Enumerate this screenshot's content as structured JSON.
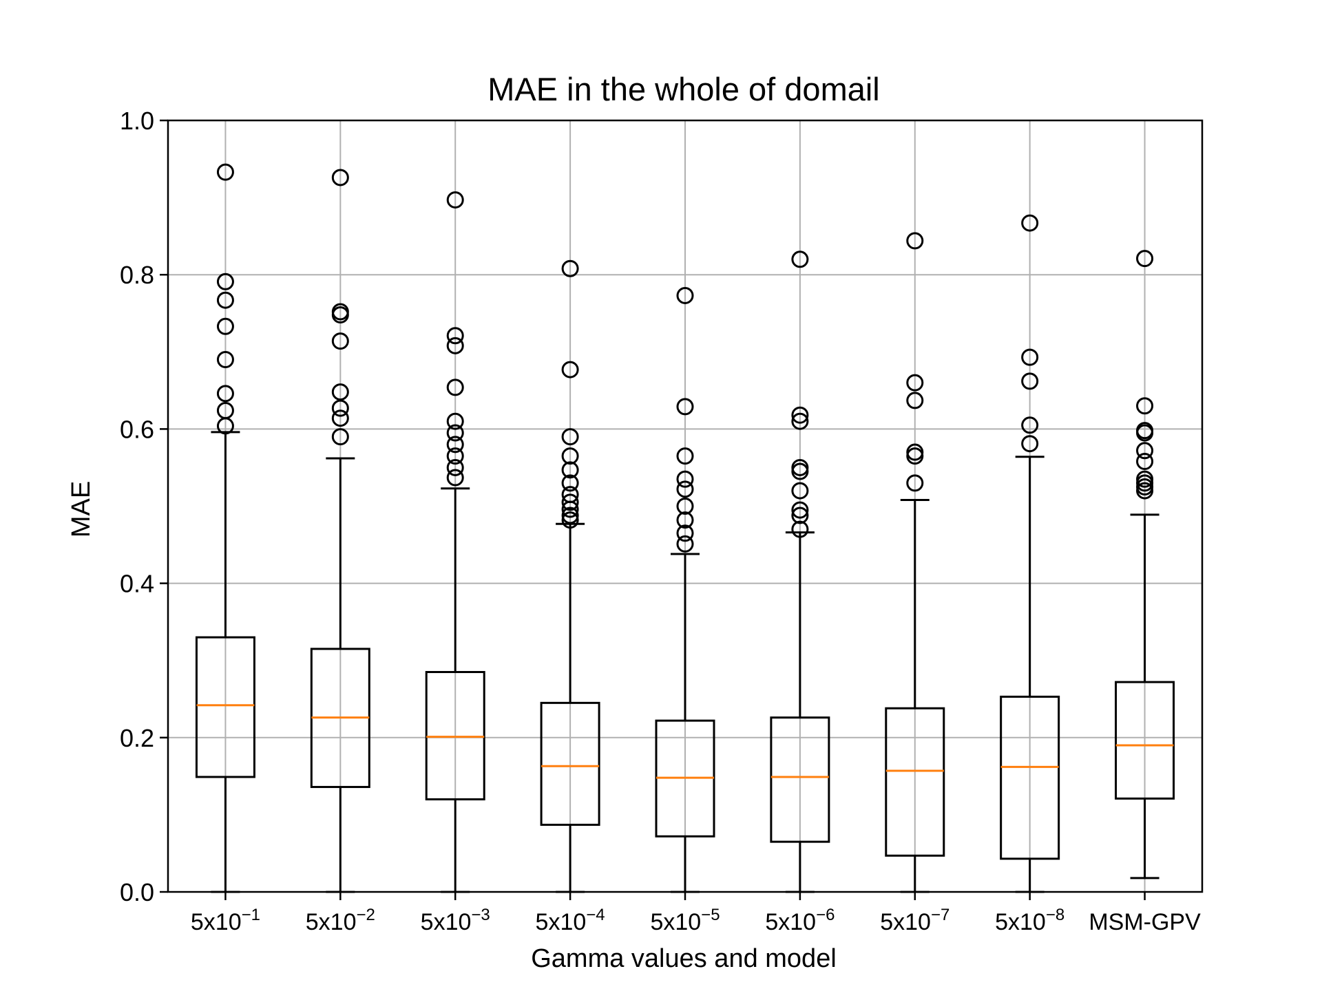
{
  "chart_data": {
    "type": "boxplot",
    "title": "MAE in the whole of domail",
    "xlabel": "Gamma values and model",
    "ylabel": "MAE",
    "ylim": [
      0.0,
      1.0
    ],
    "yticks": [
      "0.0",
      "0.2",
      "0.4",
      "0.6",
      "0.8",
      "1.0"
    ],
    "grid": true,
    "colors": {
      "box": "#000000",
      "median": "#ff7f0e",
      "grid": "#b0b0b0"
    },
    "categories": [
      {
        "base": "5x10",
        "exp": "−1"
      },
      {
        "base": "5x10",
        "exp": "−2"
      },
      {
        "base": "5x10",
        "exp": "−3"
      },
      {
        "base": "5x10",
        "exp": "−4"
      },
      {
        "base": "5x10",
        "exp": "−5"
      },
      {
        "base": "5x10",
        "exp": "−6"
      },
      {
        "base": "5x10",
        "exp": "−7"
      },
      {
        "base": "5x10",
        "exp": "−8"
      },
      {
        "base": "MSM-GPV",
        "exp": ""
      }
    ],
    "boxes": [
      {
        "whisker_low": 0.0,
        "q1": 0.149,
        "median": 0.242,
        "q3": 0.33,
        "whisker_high": 0.596,
        "outliers": [
          0.933,
          0.791,
          0.767,
          0.733,
          0.69,
          0.646,
          0.624,
          0.604
        ]
      },
      {
        "whisker_low": 0.0,
        "q1": 0.136,
        "median": 0.226,
        "q3": 0.315,
        "whisker_high": 0.562,
        "outliers": [
          0.926,
          0.752,
          0.748,
          0.714,
          0.648,
          0.627,
          0.614,
          0.59
        ]
      },
      {
        "whisker_low": 0.0,
        "q1": 0.12,
        "median": 0.201,
        "q3": 0.285,
        "whisker_high": 0.523,
        "outliers": [
          0.897,
          0.721,
          0.708,
          0.654,
          0.61,
          0.595,
          0.58,
          0.565,
          0.55,
          0.537
        ]
      },
      {
        "whisker_low": 0.0,
        "q1": 0.087,
        "median": 0.163,
        "q3": 0.245,
        "whisker_high": 0.477,
        "outliers": [
          0.808,
          0.677,
          0.59,
          0.565,
          0.547,
          0.53,
          0.515,
          0.505,
          0.496,
          0.488,
          0.482
        ]
      },
      {
        "whisker_low": 0.0,
        "q1": 0.072,
        "median": 0.148,
        "q3": 0.222,
        "whisker_high": 0.438,
        "outliers": [
          0.773,
          0.629,
          0.565,
          0.535,
          0.522,
          0.5,
          0.482,
          0.465,
          0.451
        ]
      },
      {
        "whisker_low": 0.0,
        "q1": 0.065,
        "median": 0.149,
        "q3": 0.226,
        "whisker_high": 0.466,
        "outliers": [
          0.82,
          0.618,
          0.61,
          0.55,
          0.545,
          0.52,
          0.495,
          0.488,
          0.47
        ]
      },
      {
        "whisker_low": 0.0,
        "q1": 0.047,
        "median": 0.157,
        "q3": 0.238,
        "whisker_high": 0.508,
        "outliers": [
          0.844,
          0.66,
          0.637,
          0.57,
          0.565,
          0.53
        ]
      },
      {
        "whisker_low": 0.0,
        "q1": 0.043,
        "median": 0.162,
        "q3": 0.253,
        "whisker_high": 0.564,
        "outliers": [
          0.867,
          0.693,
          0.662,
          0.605,
          0.581
        ]
      },
      {
        "whisker_low": 0.018,
        "q1": 0.121,
        "median": 0.19,
        "q3": 0.272,
        "whisker_high": 0.489,
        "outliers": [
          0.821,
          0.63,
          0.598,
          0.595,
          0.572,
          0.558,
          0.535,
          0.53,
          0.525,
          0.52
        ]
      }
    ]
  }
}
